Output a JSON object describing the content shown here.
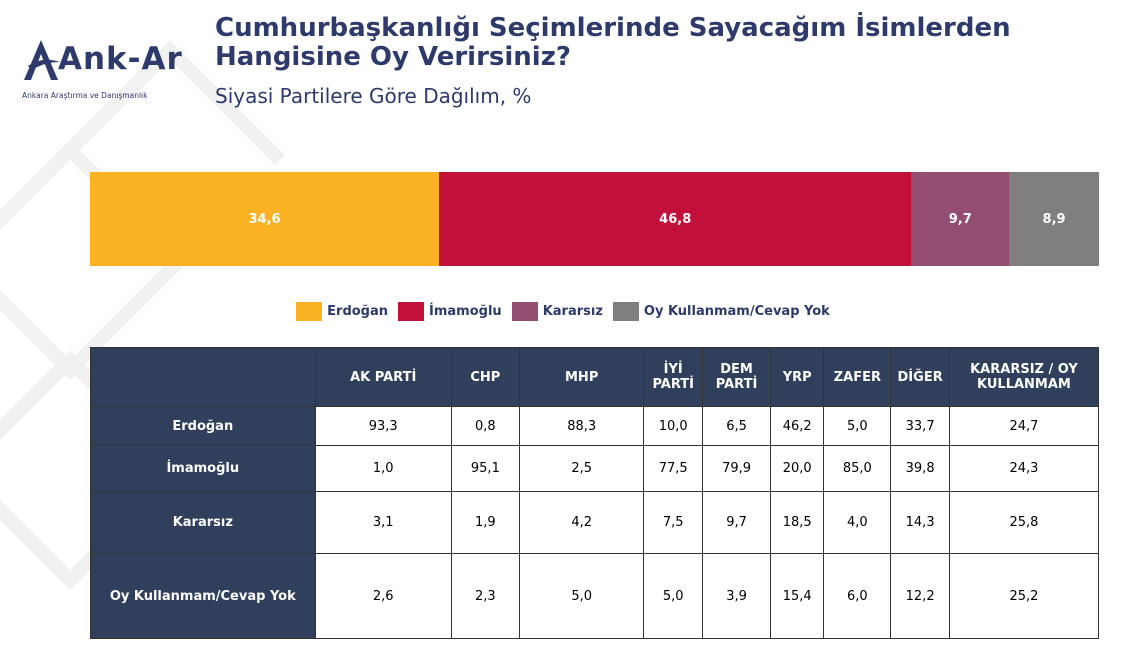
{
  "header": {
    "title": "Cumhurbaşkanlığı Seçimlerinde Sayacağım İsimlerden Hangisine Oy Verirsiniz?",
    "subtitle": "Siyasi Partilere Göre Dağılım, %"
  },
  "logo": {
    "name": "Ank-Ar",
    "subtitle": "Ankara Araştırma ve Danışmanlık",
    "brand_color": "#2d3a6b"
  },
  "chart_data": {
    "type": "bar",
    "orientation": "horizontal-stacked",
    "title": "",
    "xlim": [
      0,
      100
    ],
    "grid": false,
    "legend_position": "bottom",
    "series": [
      {
        "name": "Erdoğan",
        "value": 34.6,
        "label": "34,6",
        "color": "#fbb223"
      },
      {
        "name": "İmamoğlu",
        "value": 46.8,
        "label": "46,8",
        "color": "#c3103a"
      },
      {
        "name": "Kararsız",
        "value": 9.7,
        "label": "9,7",
        "color": "#934d70"
      },
      {
        "name": "Oy Kullanmam/Cevap Yok",
        "value": 8.9,
        "label": "8,9",
        "color": "#7f7f7f"
      }
    ]
  },
  "table": {
    "columns": [
      "AK PARTİ",
      "CHP",
      "MHP",
      "İYİ PARTİ",
      "DEM PARTİ",
      "YRP",
      "ZAFER",
      "DİĞER",
      "KARARSIZ / OY KULLANMAM"
    ],
    "rows": [
      {
        "label": "Erdoğan",
        "values": [
          "93,3",
          "0,8",
          "88,3",
          "10,0",
          "6,5",
          "46,2",
          "5,0",
          "33,7",
          "24,7"
        ]
      },
      {
        "label": "İmamoğlu",
        "values": [
          "1,0",
          "95,1",
          "2,5",
          "77,5",
          "79,9",
          "20,0",
          "85,0",
          "39,8",
          "24,3"
        ]
      },
      {
        "label": "Kararsız",
        "values": [
          "3,1",
          "1,9",
          "4,2",
          "7,5",
          "9,7",
          "18,5",
          "4,0",
          "14,3",
          "25,8"
        ]
      },
      {
        "label": "Oy Kullanmam/Cevap Yok",
        "values": [
          "2,6",
          "2,3",
          "5,0",
          "5,0",
          "3,9",
          "15,4",
          "6,0",
          "12,2",
          "25,2"
        ]
      }
    ]
  }
}
